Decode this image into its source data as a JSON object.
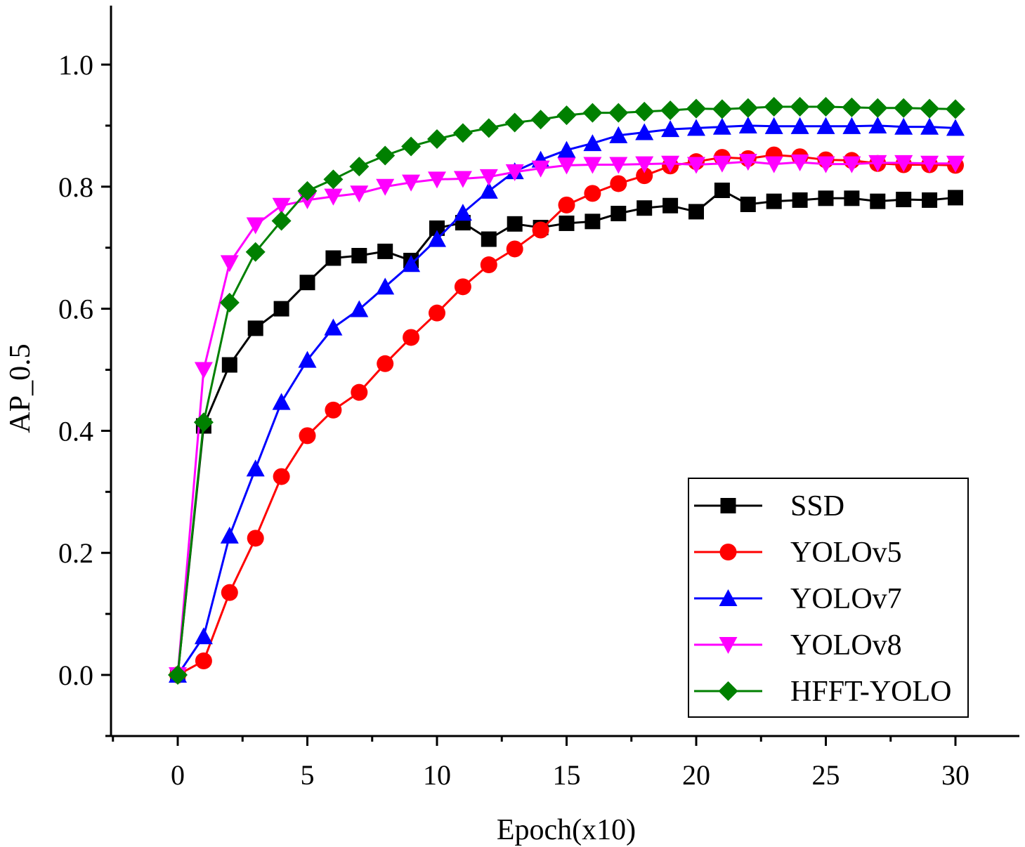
{
  "chart_data": {
    "type": "line",
    "title": "",
    "xlabel": "Epoch(x10)",
    "ylabel": "AP_0.5",
    "xlim": [
      -2.5,
      32.5
    ],
    "ylim": [
      -0.097,
      1.1
    ],
    "xticks": [
      0,
      5,
      10,
      15,
      20,
      25,
      30
    ],
    "yticks": [
      0.0,
      0.2,
      0.4,
      0.6,
      0.8,
      1.0
    ],
    "xtick_labels": [
      "0",
      "5",
      "10",
      "15",
      "20",
      "25",
      "30"
    ],
    "ytick_labels": [
      "0.0",
      "0.2",
      "0.4",
      "0.6",
      "0.8",
      "1.0"
    ],
    "legend_position": "bottom-right",
    "grid": false,
    "x": [
      0,
      1,
      2,
      3,
      4,
      5,
      6,
      7,
      8,
      9,
      10,
      11,
      12,
      13,
      14,
      15,
      16,
      17,
      18,
      19,
      20,
      21,
      22,
      23,
      24,
      25,
      26,
      27,
      28,
      29,
      30
    ],
    "series": [
      {
        "name": "SSD",
        "color": "#000000",
        "marker": "square",
        "values": [
          0.0,
          0.408,
          0.508,
          0.568,
          0.6,
          0.643,
          0.683,
          0.687,
          0.694,
          0.679,
          0.732,
          0.741,
          0.714,
          0.739,
          0.733,
          0.74,
          0.743,
          0.756,
          0.765,
          0.769,
          0.759,
          0.794,
          0.771,
          0.776,
          0.778,
          0.781,
          0.781,
          0.776,
          0.779,
          0.778,
          0.782
        ]
      },
      {
        "name": "YOLOv5",
        "color": "#ff0000",
        "marker": "circle",
        "values": [
          0.0,
          0.023,
          0.135,
          0.224,
          0.325,
          0.392,
          0.434,
          0.463,
          0.51,
          0.553,
          0.593,
          0.636,
          0.672,
          0.698,
          0.729,
          0.77,
          0.789,
          0.805,
          0.818,
          0.834,
          0.841,
          0.848,
          0.846,
          0.852,
          0.849,
          0.844,
          0.843,
          0.838,
          0.836,
          0.836,
          0.835
        ]
      },
      {
        "name": "YOLOv7",
        "color": "#0000ff",
        "marker": "triangle-up",
        "values": [
          0.0,
          0.063,
          0.228,
          0.338,
          0.447,
          0.516,
          0.569,
          0.599,
          0.636,
          0.673,
          0.714,
          0.757,
          0.793,
          0.825,
          0.844,
          0.86,
          0.871,
          0.884,
          0.889,
          0.894,
          0.896,
          0.898,
          0.9,
          0.899,
          0.899,
          0.899,
          0.899,
          0.9,
          0.898,
          0.898,
          0.896
        ]
      },
      {
        "name": "YOLOv8",
        "color": "#ff00ff",
        "marker": "triangle-down",
        "values": [
          0.0,
          0.5,
          0.675,
          0.737,
          0.769,
          0.778,
          0.784,
          0.789,
          0.8,
          0.807,
          0.812,
          0.813,
          0.816,
          0.824,
          0.83,
          0.835,
          0.836,
          0.836,
          0.837,
          0.838,
          0.836,
          0.838,
          0.841,
          0.837,
          0.84,
          0.837,
          0.837,
          0.839,
          0.839,
          0.838,
          0.838
        ]
      },
      {
        "name": "HFFT-YOLO",
        "color": "#008000",
        "marker": "diamond",
        "values": [
          0.0,
          0.414,
          0.61,
          0.693,
          0.744,
          0.793,
          0.812,
          0.833,
          0.851,
          0.866,
          0.878,
          0.888,
          0.896,
          0.905,
          0.91,
          0.917,
          0.921,
          0.921,
          0.923,
          0.925,
          0.928,
          0.927,
          0.929,
          0.931,
          0.931,
          0.931,
          0.93,
          0.929,
          0.929,
          0.928,
          0.927
        ]
      }
    ]
  }
}
